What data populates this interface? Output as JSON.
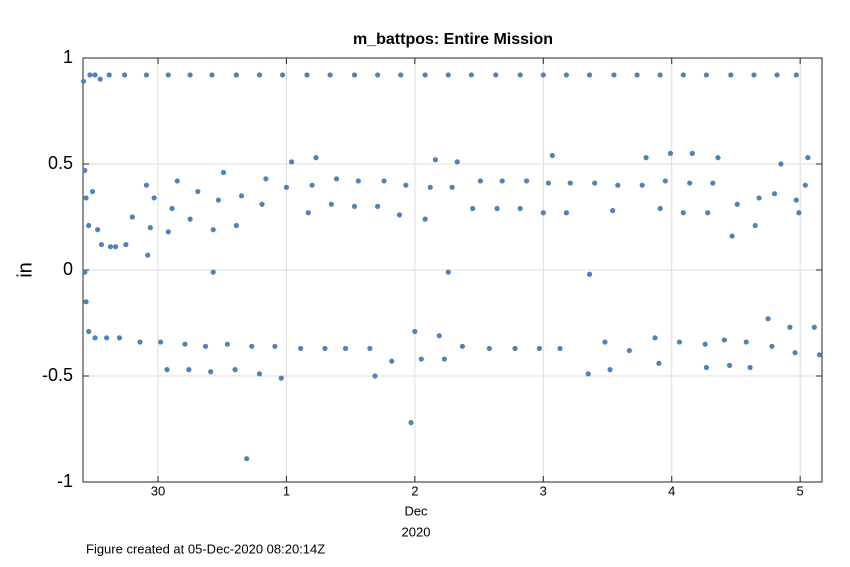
{
  "chart_data": {
    "type": "scatter",
    "title": "m_battpos: Entire Mission",
    "ylabel": "in",
    "xlabel_lines": [
      "Dec",
      "2020"
    ],
    "footnote": "Figure created at 05-Dec-2020 08:20:14Z",
    "color": "#4f81bd",
    "grid": true,
    "xlim": [
      -0.584,
      5.17
    ],
    "xticks": [
      {
        "value": 0,
        "label": "30"
      },
      {
        "value": 1,
        "label": "1"
      },
      {
        "value": 2,
        "label": "2"
      },
      {
        "value": 3,
        "label": "3"
      },
      {
        "value": 4,
        "label": "4"
      },
      {
        "value": 5,
        "label": "5"
      }
    ],
    "ylim": [
      -1,
      1
    ],
    "yticks": [
      -1,
      -0.5,
      0,
      0.5,
      1
    ],
    "x": [
      -0.58,
      -0.53,
      -0.49,
      -0.45,
      -0.38,
      -0.26,
      -0.09,
      0.08,
      0.25,
      0.42,
      0.61,
      0.79,
      0.97,
      1.16,
      1.34,
      1.53,
      1.71,
      1.89,
      2.08,
      2.26,
      2.44,
      2.63,
      2.82,
      3.0,
      3.18,
      3.36,
      3.55,
      3.73,
      3.91,
      4.09,
      4.27,
      4.46,
      4.64,
      4.82,
      4.97,
      -0.57,
      -0.56,
      -0.54,
      -0.51,
      -0.47,
      -0.44,
      -0.37,
      -0.33,
      -0.25,
      -0.2,
      -0.09,
      -0.08,
      -0.06,
      -0.03,
      0.08,
      0.11,
      0.15,
      0.25,
      0.31,
      0.43,
      0.43,
      0.47,
      0.51,
      0.61,
      0.65,
      0.81,
      0.84,
      1.0,
      1.04,
      1.17,
      1.2,
      1.23,
      1.35,
      1.39,
      1.53,
      1.56,
      1.71,
      1.76,
      1.88,
      1.93,
      2.08,
      2.12,
      2.16,
      2.26,
      2.29,
      2.33,
      2.45,
      2.51,
      2.64,
      2.68,
      2.82,
      2.87,
      3.0,
      3.04,
      3.07,
      3.18,
      3.21,
      3.36,
      3.4,
      3.54,
      3.58,
      3.77,
      3.8,
      3.91,
      3.95,
      3.99,
      4.09,
      4.14,
      4.16,
      4.28,
      4.32,
      4.36,
      4.47,
      4.51,
      4.65,
      4.68,
      4.8,
      4.85,
      4.97,
      4.99,
      5.04,
      5.06,
      -0.57,
      -0.56,
      -0.54,
      -0.49,
      -0.4,
      -0.3,
      -0.14,
      0.02,
      0.07,
      0.21,
      0.24,
      0.37,
      0.41,
      0.54,
      0.6,
      0.69,
      0.73,
      0.79,
      0.91,
      0.96,
      1.11,
      1.3,
      1.46,
      1.65,
      1.69,
      1.82,
      1.97,
      2.0,
      2.05,
      2.19,
      2.23,
      2.37,
      2.58,
      2.78,
      2.97,
      3.13,
      3.35,
      3.48,
      3.52,
      3.67,
      3.87,
      3.9,
      4.06,
      4.26,
      4.27,
      4.41,
      4.45,
      4.58,
      4.61,
      4.75,
      4.78,
      4.92,
      4.96,
      5.11,
      5.15
    ],
    "values": [
      0.89,
      0.92,
      0.92,
      0.9,
      0.92,
      0.92,
      0.92,
      0.92,
      0.92,
      0.92,
      0.92,
      0.92,
      0.92,
      0.92,
      0.92,
      0.92,
      0.92,
      0.92,
      0.92,
      0.92,
      0.92,
      0.92,
      0.92,
      0.92,
      0.92,
      0.92,
      0.92,
      0.92,
      0.92,
      0.92,
      0.92,
      0.92,
      0.92,
      0.92,
      0.92,
      0.47,
      0.34,
      0.21,
      0.37,
      0.19,
      0.12,
      0.11,
      0.11,
      0.12,
      0.25,
      0.4,
      0.07,
      0.2,
      0.34,
      0.18,
      0.29,
      0.42,
      0.24,
      0.37,
      0.19,
      -0.01,
      0.33,
      0.46,
      0.21,
      0.35,
      0.31,
      0.43,
      0.39,
      0.51,
      0.27,
      0.4,
      0.53,
      0.31,
      0.43,
      0.3,
      0.42,
      0.3,
      0.42,
      0.26,
      0.4,
      0.24,
      0.39,
      0.52,
      -0.01,
      0.39,
      0.51,
      0.29,
      0.42,
      0.29,
      0.42,
      0.29,
      0.42,
      0.27,
      0.41,
      0.54,
      0.27,
      0.41,
      -0.02,
      0.41,
      0.28,
      0.4,
      0.4,
      0.53,
      0.29,
      0.42,
      0.55,
      0.27,
      0.41,
      0.55,
      0.27,
      0.41,
      0.53,
      0.16,
      0.31,
      0.21,
      0.34,
      0.36,
      0.5,
      0.33,
      0.27,
      0.4,
      0.53,
      -0.01,
      -0.15,
      -0.29,
      -0.32,
      -0.32,
      -0.32,
      -0.34,
      -0.34,
      -0.47,
      -0.35,
      -0.47,
      -0.36,
      -0.48,
      -0.35,
      -0.47,
      -0.89,
      -0.36,
      -0.49,
      -0.36,
      -0.51,
      -0.37,
      -0.37,
      -0.37,
      -0.37,
      -0.5,
      -0.43,
      -0.72,
      -0.29,
      -0.42,
      -0.31,
      -0.42,
      -0.36,
      -0.37,
      -0.37,
      -0.37,
      -0.37,
      -0.49,
      -0.34,
      -0.47,
      -0.38,
      -0.32,
      -0.44,
      -0.34,
      -0.35,
      -0.46,
      -0.33,
      -0.45,
      -0.34,
      -0.46,
      -0.23,
      -0.36,
      -0.27,
      -0.39,
      -0.27,
      -0.4
    ]
  }
}
